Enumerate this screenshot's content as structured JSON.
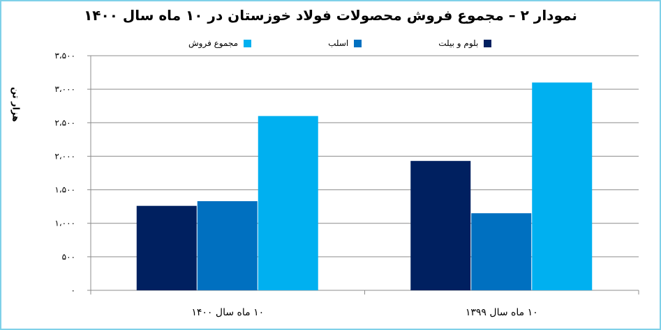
{
  "chart_data": {
    "type": "bar",
    "title": "نمودار ۲ – مجموع فروش محصولات فولاد خوزستان در ۱۰ ماه سال ۱۴۰۰",
    "ylabel": "هزار تن",
    "xlabel": "",
    "ylim": [
      0,
      3500
    ],
    "ytick_values": [
      0,
      500,
      1000,
      1500,
      2000,
      2500,
      3000,
      3500
    ],
    "ytick_labels": [
      "۰",
      "۵۰۰",
      "۱،۰۰۰",
      "۱،۵۰۰",
      "۲،۰۰۰",
      "۲،۵۰۰",
      "۳،۰۰۰",
      "۳،۵۰۰"
    ],
    "categories": [
      "۱۰ ماه سال ۱۴۰۰",
      "۱۰ ماه سال ۱۳۹۹"
    ],
    "series": [
      {
        "name": "بلوم و بیلت",
        "color": "#002060",
        "values": [
          1260,
          1930
        ]
      },
      {
        "name": "اسلب",
        "color": "#0070c0",
        "values": [
          1330,
          1150
        ]
      },
      {
        "name": "مجموع فروش",
        "color": "#00b0f0",
        "values": [
          2600,
          3100
        ]
      }
    ],
    "grid": true,
    "legend_position": "top"
  }
}
